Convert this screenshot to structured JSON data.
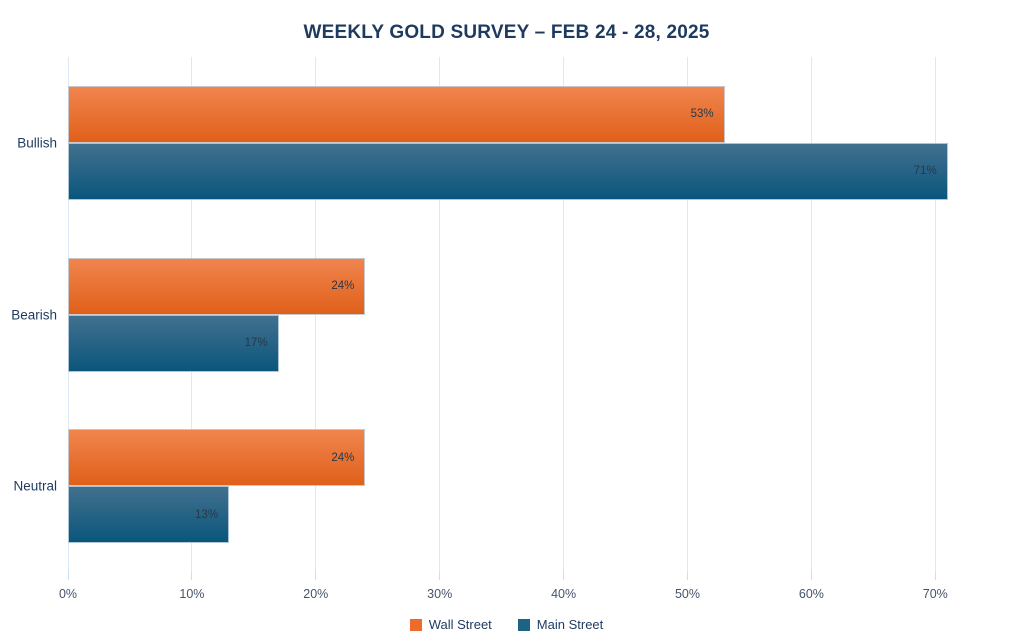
{
  "chart": {
    "title": "WEEKLY GOLD SURVEY – FEB 24 - 28, 2025"
  },
  "chart_data": {
    "type": "bar",
    "orientation": "horizontal",
    "title": "WEEKLY GOLD SURVEY – FEB 24 - 28, 2025",
    "xlabel": "",
    "ylabel": "",
    "categories": [
      "Bullish",
      "Bearish",
      "Neutral"
    ],
    "series": [
      {
        "name": "Wall Street",
        "values": [
          53,
          24,
          24
        ],
        "value_labels": [
          "53%",
          "24%",
          "24%"
        ],
        "color_top": "#F0854E",
        "color_bottom": "#E0601A",
        "legend_color": "#ED6C2C"
      },
      {
        "name": "Main Street",
        "values": [
          71,
          17,
          13
        ],
        "value_labels": [
          "71%",
          "17%",
          "13%"
        ],
        "color_top": "#42708E",
        "color_bottom": "#0A567C",
        "legend_color": "#1D6384"
      }
    ],
    "value_suffix": "%",
    "x_tick_values": [
      0,
      10,
      20,
      30,
      40,
      50,
      60,
      70
    ],
    "x_tick_labels": [
      "0%",
      "10%",
      "20%",
      "30%",
      "40%",
      "50%",
      "60%",
      "70%"
    ],
    "xlim": [
      0,
      76.3
    ],
    "grid": "vertical",
    "legend_position": "bottom"
  },
  "colors": {
    "background": "#FFFFFF",
    "title_text": "#1E3A5F",
    "category_text": "#1E3A5F",
    "tick_text": "#44546A",
    "value_text": "#2A3747",
    "gridline": "#DCE9F5",
    "tick_mark": "#C9DFF3",
    "bar_border": "#C5D6E4"
  }
}
